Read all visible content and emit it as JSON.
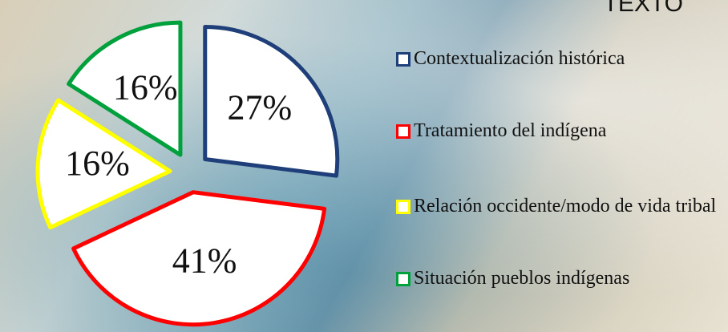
{
  "chart_data": {
    "type": "pie",
    "title": "TEXTO",
    "categories": [
      "Contextualización histórica",
      "Tratamiento del indígena",
      "Relación occidente/modo de vida tribal",
      "Situación pueblos indígenas"
    ],
    "values": [
      27,
      41,
      16,
      16
    ],
    "value_labels": [
      "27%",
      "41%",
      "16%",
      "16%"
    ],
    "colors": [
      "#1f3f7a",
      "#ff0000",
      "#ffff00",
      "#00a03c"
    ]
  }
}
